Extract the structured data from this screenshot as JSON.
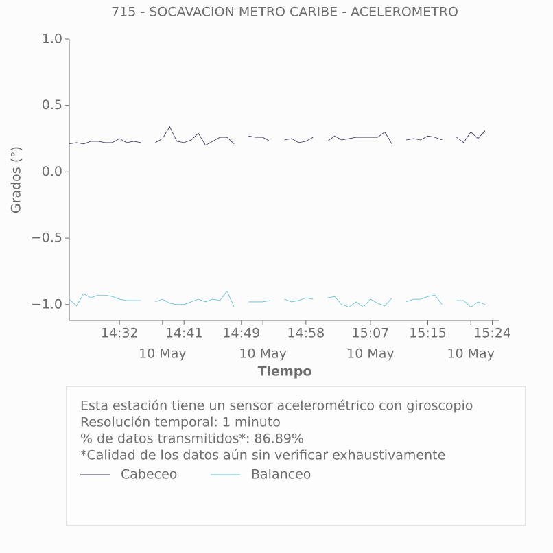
{
  "chart_data": {
    "type": "line",
    "title": "715 - SOCAVACION METRO CARIBE - ACELEROMETRO",
    "xlabel": "Tiempo",
    "ylabel": "Grados (°)",
    "x": [
      "14:25",
      "14:26",
      "14:27",
      "14:28",
      "14:29",
      "14:30",
      "14:31",
      "14:32",
      "14:33",
      "14:34",
      "14:35",
      "14:36",
      "14:37",
      "14:38",
      "14:39",
      "14:40",
      "14:41",
      "14:42",
      "14:43",
      "14:44",
      "14:45",
      "14:46",
      "14:47",
      "14:48",
      "14:49",
      "14:50",
      "14:51",
      "14:52",
      "14:53",
      "14:54",
      "14:55",
      "14:56",
      "14:57",
      "14:58",
      "14:59",
      "15:00",
      "15:01",
      "15:02",
      "15:03",
      "15:04",
      "15:05",
      "15:06",
      "15:07",
      "15:08",
      "15:09",
      "15:10",
      "15:11",
      "15:12",
      "15:13",
      "15:14",
      "15:15",
      "15:16",
      "15:17",
      "15:18",
      "15:19",
      "15:20",
      "15:21",
      "15:22",
      "15:23"
    ],
    "series": [
      {
        "name": "Cabeceo",
        "color": "#2e3155",
        "values": [
          0.21,
          0.22,
          0.21,
          0.23,
          0.23,
          0.22,
          0.22,
          0.25,
          0.22,
          0.23,
          0.22,
          null,
          0.22,
          0.25,
          0.34,
          0.23,
          0.22,
          0.24,
          0.29,
          0.2,
          0.23,
          0.26,
          0.26,
          0.21,
          null,
          0.27,
          0.26,
          0.26,
          0.23,
          null,
          0.24,
          0.25,
          0.22,
          0.23,
          0.26,
          null,
          0.23,
          0.27,
          0.24,
          0.25,
          0.26,
          0.26,
          0.26,
          0.26,
          0.3,
          0.21,
          null,
          0.24,
          0.25,
          0.24,
          0.27,
          0.26,
          0.24,
          null,
          0.26,
          0.22,
          0.3,
          0.25,
          0.31
        ]
      },
      {
        "name": "Balanceo",
        "color": "#5bbfd6",
        "values": [
          -0.96,
          -1.01,
          -0.92,
          -0.95,
          -0.93,
          -0.93,
          -0.94,
          -0.96,
          -0.97,
          -0.97,
          -0.97,
          null,
          -0.98,
          -0.96,
          -0.99,
          -1.0,
          -1.0,
          -0.98,
          -0.96,
          -0.98,
          -0.96,
          -0.97,
          -0.9,
          -1.02,
          null,
          -0.98,
          -0.98,
          -0.98,
          -0.97,
          null,
          -0.96,
          -0.98,
          -0.97,
          -0.95,
          -0.96,
          null,
          -0.95,
          -0.94,
          -1.0,
          -1.02,
          -0.98,
          -1.02,
          -0.96,
          -0.99,
          -1.01,
          -0.95,
          null,
          -0.98,
          -0.96,
          -0.96,
          -0.94,
          -0.93,
          -1.0,
          null,
          -0.97,
          -0.97,
          -1.02,
          -0.98,
          -1.0
        ]
      }
    ],
    "xlim": [
      "14:25",
      "15:25"
    ],
    "xticks": [
      "14:32",
      "14:41",
      "14:49",
      "14:58",
      "15:07",
      "15:15",
      "15:24"
    ],
    "xtick_dates": [
      {
        "value": "14:38",
        "label": "10 May"
      },
      {
        "value": "14:52",
        "label": "10 May"
      },
      {
        "value": "15:07",
        "label": "10 May"
      },
      {
        "value": "15:21",
        "label": "10 May"
      }
    ],
    "ylim": [
      -1.12,
      1.0
    ],
    "yticks": [
      {
        "value": 1.0,
        "label": "1.0"
      },
      {
        "value": 0.5,
        "label": "0.5"
      },
      {
        "value": 0.0,
        "label": "0.0"
      },
      {
        "value": -0.5,
        "label": "−0.5"
      },
      {
        "value": -1.0,
        "label": "−1.0"
      }
    ],
    "notes": [
      "Esta estación tiene un sensor acelerométrico con giroscopio",
      "Resolución temporal: 1 minuto",
      "% de datos transmitidos*: 86.89%",
      "*Calidad de los datos aún sin verificar exhaustivamente"
    ]
  }
}
